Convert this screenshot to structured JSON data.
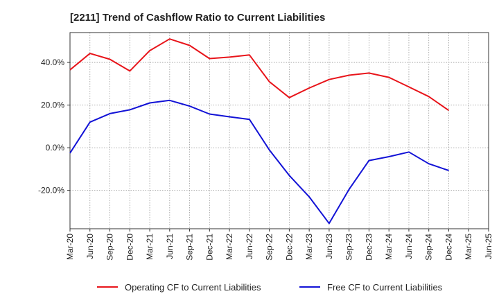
{
  "chart_data": {
    "type": "line",
    "title": "[2211]  Trend of Cashflow Ratio to Current Liabilities",
    "xlabel": "",
    "ylabel": "",
    "x": [
      "Mar-20",
      "Jun-20",
      "Sep-20",
      "Dec-20",
      "Mar-21",
      "Jun-21",
      "Sep-21",
      "Dec-21",
      "Mar-22",
      "Jun-22",
      "Sep-22",
      "Dec-22",
      "Mar-23",
      "Jun-23",
      "Sep-23",
      "Dec-23",
      "Mar-24",
      "Jun-24",
      "Sep-24",
      "Dec-24",
      "Mar-25",
      "Jun-25"
    ],
    "ylim": [
      -38,
      54
    ],
    "yticks": [
      -20,
      0,
      20,
      40
    ],
    "ytick_labels": [
      "-20.0%",
      "0.0%",
      "20.0%",
      "40.0%"
    ],
    "grid": true,
    "legend_position": "bottom",
    "series": [
      {
        "name": "Operating CF to Current Liabilities",
        "color": "#e8141a",
        "values": [
          36.5,
          44.2,
          41.5,
          36.0,
          45.5,
          51.0,
          48.0,
          41.8,
          42.5,
          43.5,
          31.0,
          23.5,
          28.0,
          32.0,
          34.0,
          35.0,
          33.0,
          28.5,
          24.0,
          17.5,
          null,
          null
        ]
      },
      {
        "name": "Free CF to Current Liabilities",
        "color": "#1212d6",
        "values": [
          -2.5,
          12.0,
          16.0,
          17.8,
          21.0,
          22.2,
          19.5,
          15.8,
          14.5,
          13.3,
          -1.0,
          -13.0,
          -23.0,
          -35.5,
          -19.5,
          -6.0,
          -4.2,
          -2.0,
          -7.5,
          -10.7,
          null,
          null
        ]
      }
    ]
  }
}
